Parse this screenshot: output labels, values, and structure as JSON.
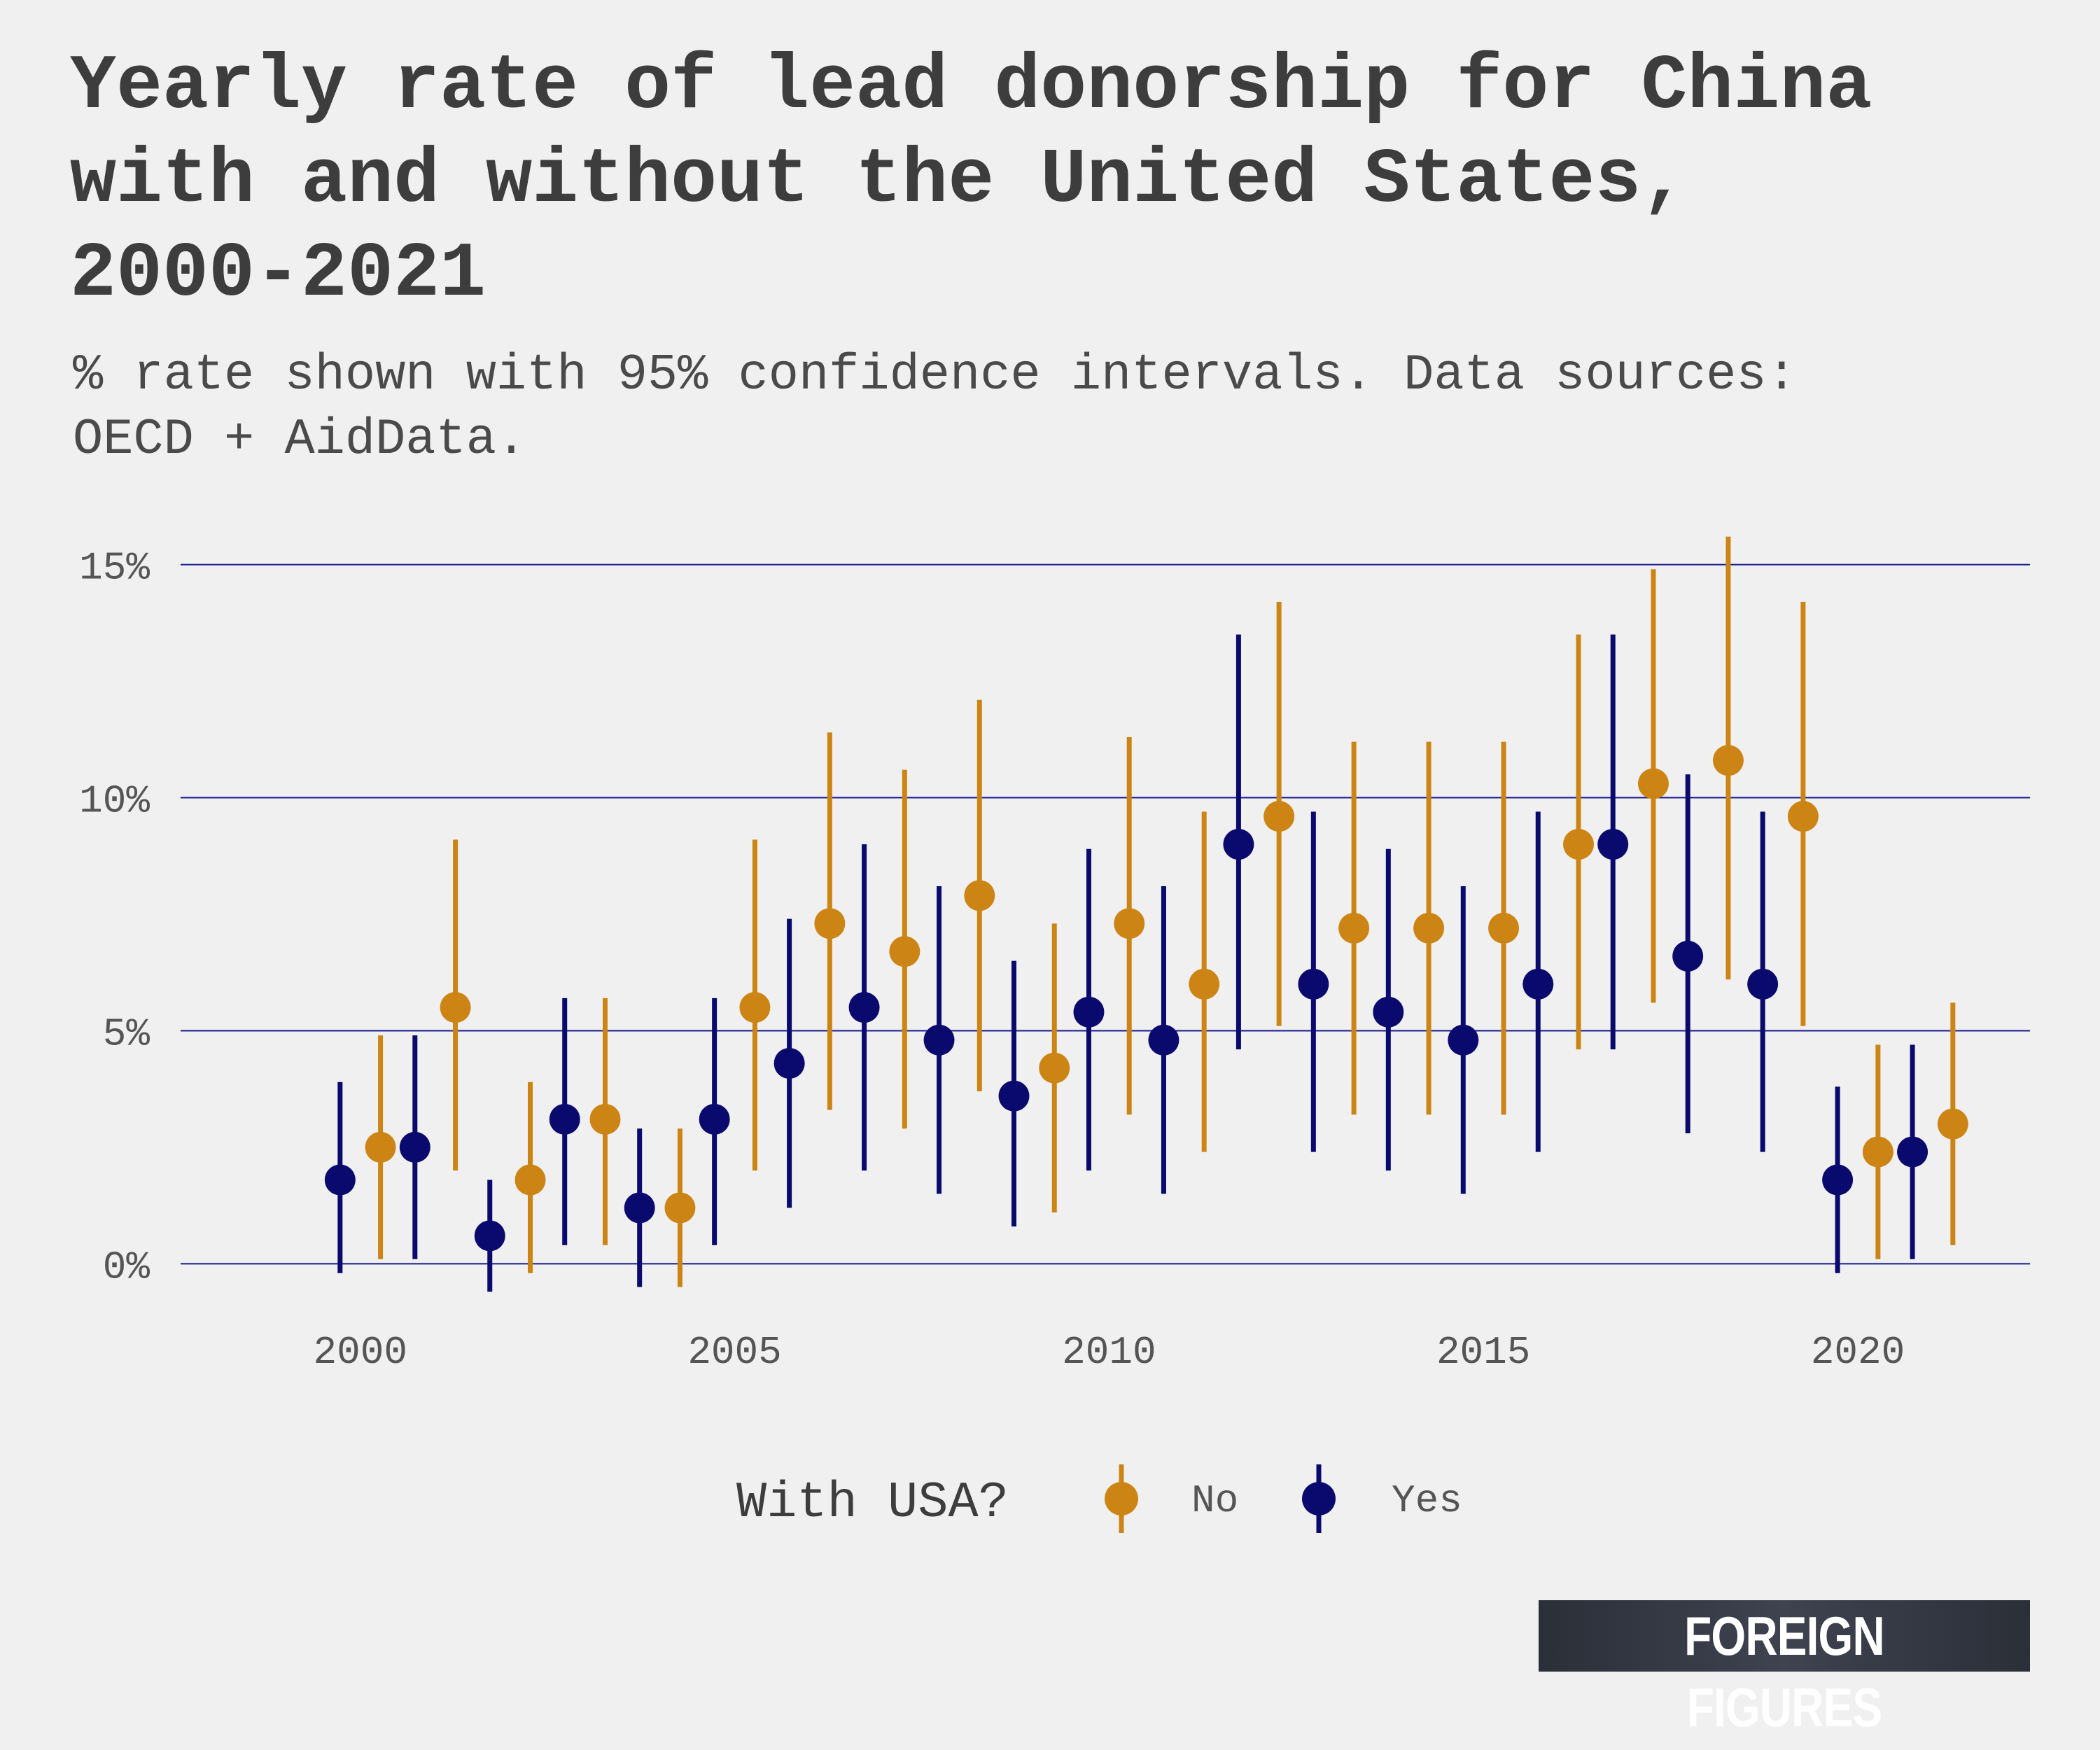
{
  "title": "Yearly rate of lead donorship for China with and without the United States, 2000-2021",
  "subtitle": "% rate shown with 95% confidence intervals. Data sources: OECD + AidData.",
  "brand": "FOREIGN FIGURES",
  "colors": {
    "background": "#f0f0f0",
    "grid": "#1a1a8c",
    "no": "#cc8514",
    "yes": "#0a0a6e",
    "text": "#3d3d3d"
  },
  "chart_data": {
    "type": "scatter",
    "title": "Yearly rate of lead donorship for China with and without the United States, 2000-2021",
    "xlabel": "",
    "ylabel": "",
    "ylim": [
      -0.7,
      15.7
    ],
    "xlim": [
      1997.6,
      2022.3
    ],
    "y_ticks": [
      0,
      5,
      10,
      15
    ],
    "y_tick_labels": [
      "0%",
      "5%",
      "10%",
      "15%"
    ],
    "x_ticks": [
      2000,
      2005,
      2010,
      2015,
      2020
    ],
    "x_tick_labels": [
      "2000",
      "2005",
      "2010",
      "2015",
      "2020"
    ],
    "grid": true,
    "legend": {
      "title": "With USA?",
      "position": "bottom",
      "entries": [
        "No",
        "Yes"
      ]
    },
    "series": [
      {
        "name": "No",
        "x": [
          2000,
          2001,
          2002,
          2003,
          2004,
          2005,
          2006,
          2007,
          2008,
          2009,
          2010,
          2011,
          2012,
          2013,
          2014,
          2015,
          2016,
          2017,
          2018,
          2019,
          2020,
          2021
        ],
        "values": [
          2.5,
          5.5,
          1.8,
          3.1,
          1.2,
          5.5,
          7.3,
          6.7,
          7.9,
          4.2,
          7.3,
          6.0,
          9.6,
          7.2,
          7.2,
          7.2,
          9.0,
          10.3,
          10.8,
          9.6,
          2.4,
          3.0
        ],
        "lower": [
          0.1,
          2.0,
          -0.2,
          0.4,
          -0.5,
          2.0,
          3.3,
          2.9,
          3.7,
          1.1,
          3.2,
          2.4,
          5.1,
          3.2,
          3.2,
          3.2,
          4.6,
          5.6,
          6.1,
          5.1,
          0.1,
          0.4
        ],
        "upper": [
          4.9,
          9.1,
          3.9,
          5.7,
          2.9,
          9.1,
          11.4,
          10.6,
          12.1,
          7.3,
          11.3,
          9.7,
          14.2,
          11.2,
          11.2,
          11.2,
          13.5,
          14.9,
          15.6,
          14.2,
          4.7,
          5.6
        ]
      },
      {
        "name": "Yes",
        "x": [
          2000,
          2001,
          2002,
          2003,
          2004,
          2005,
          2006,
          2007,
          2008,
          2009,
          2010,
          2011,
          2012,
          2013,
          2014,
          2015,
          2016,
          2017,
          2018,
          2019,
          2020,
          2021
        ],
        "values": [
          1.8,
          2.5,
          0.6,
          3.1,
          1.2,
          3.1,
          4.3,
          5.5,
          4.8,
          3.6,
          5.4,
          4.8,
          9.0,
          6.0,
          5.4,
          4.8,
          6.0,
          9.0,
          6.6,
          6.0,
          1.8,
          2.4
        ],
        "lower": [
          -0.2,
          0.1,
          -0.6,
          0.4,
          -0.5,
          0.4,
          1.2,
          2.0,
          1.5,
          0.8,
          2.0,
          1.5,
          4.6,
          2.4,
          2.0,
          1.5,
          2.4,
          4.6,
          2.8,
          2.4,
          -0.2,
          0.1
        ],
        "upper": [
          3.9,
          4.9,
          1.8,
          5.7,
          2.9,
          5.7,
          7.4,
          9.0,
          8.1,
          6.5,
          8.9,
          8.1,
          13.5,
          9.7,
          8.9,
          8.1,
          9.7,
          13.5,
          10.5,
          9.7,
          3.8,
          4.7
        ]
      }
    ]
  }
}
